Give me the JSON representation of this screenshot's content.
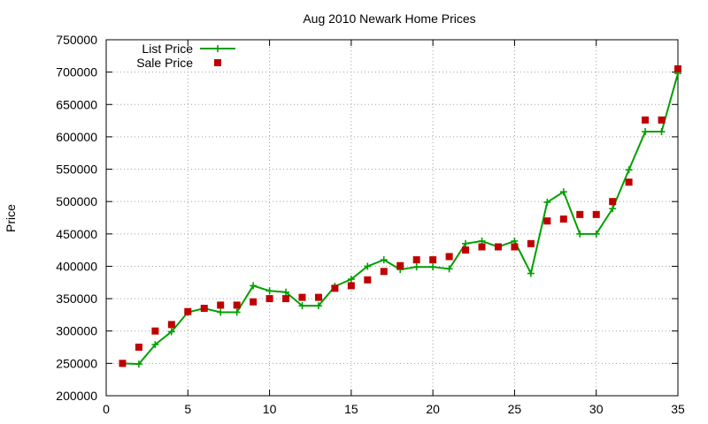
{
  "chart_data": {
    "type": "line",
    "title": "Aug 2010 Newark Home Prices",
    "xlabel": "",
    "ylabel": "Price",
    "xlim": [
      0,
      35
    ],
    "ylim": [
      200000,
      750000
    ],
    "x_ticks": [
      0,
      5,
      10,
      15,
      20,
      25,
      30,
      35
    ],
    "y_ticks": [
      200000,
      250000,
      300000,
      350000,
      400000,
      450000,
      500000,
      550000,
      600000,
      650000,
      700000,
      750000
    ],
    "grid": true,
    "grid_style": "dotted",
    "legend_position": "top-left",
    "series": [
      {
        "name": "List Price",
        "style": "line-with-plus-markers",
        "color": "#00a000",
        "x": [
          1,
          2,
          3,
          4,
          5,
          6,
          7,
          8,
          9,
          10,
          11,
          12,
          13,
          14,
          15,
          16,
          17,
          18,
          19,
          20,
          21,
          22,
          23,
          24,
          25,
          26,
          27,
          28,
          29,
          30,
          31,
          32,
          33,
          34,
          35
        ],
        "values": [
          250000,
          249000,
          279000,
          299000,
          329000,
          335000,
          329000,
          329000,
          370000,
          362000,
          360000,
          339000,
          339000,
          369000,
          380000,
          400000,
          410000,
          395000,
          399000,
          399000,
          396000,
          435000,
          439000,
          430000,
          439000,
          389000,
          499000,
          515000,
          450000,
          450000,
          489000,
          549000,
          608000,
          608000,
          698000
        ]
      },
      {
        "name": "Sale Price",
        "style": "square-markers",
        "color": "#c00000",
        "x": [
          1,
          2,
          3,
          4,
          5,
          6,
          7,
          8,
          9,
          10,
          11,
          12,
          13,
          14,
          15,
          16,
          17,
          18,
          19,
          20,
          21,
          22,
          23,
          24,
          25,
          26,
          27,
          28,
          29,
          30,
          31,
          32,
          33,
          34,
          35
        ],
        "values": [
          250000,
          275000,
          300000,
          310000,
          330000,
          335000,
          340000,
          340000,
          345000,
          350000,
          350000,
          352000,
          352000,
          366000,
          370000,
          379000,
          392000,
          401000,
          410000,
          410000,
          415000,
          425000,
          430000,
          430000,
          430000,
          435000,
          470000,
          473000,
          480000,
          480000,
          500000,
          530000,
          626000,
          626000,
          705000
        ]
      }
    ]
  }
}
